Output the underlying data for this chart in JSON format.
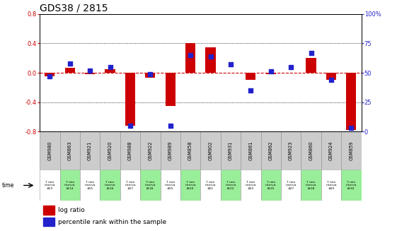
{
  "title": "GDS38 / 2815",
  "gsm_labels": [
    "GSM980",
    "GSM863",
    "GSM921",
    "GSM920",
    "GSM988",
    "GSM922",
    "GSM989",
    "GSM858",
    "GSM902",
    "GSM931",
    "GSM861",
    "GSM862",
    "GSM923",
    "GSM860",
    "GSM924",
    "GSM859"
  ],
  "time_labels_line1": "7 min",
  "time_labels_line2": "interva",
  "time_labels_ids": [
    "#13",
    "l#14",
    "#15",
    "l#16",
    "#17",
    "l#18",
    "#19",
    "l#20",
    "#21",
    "l#22",
    "#23",
    "l#25",
    "#27",
    "l#28",
    "#29",
    "l#30"
  ],
  "log_ratio": [
    -0.05,
    0.07,
    -0.02,
    0.05,
    -0.72,
    -0.07,
    -0.45,
    0.4,
    0.35,
    0.0,
    -0.1,
    -0.02,
    0.0,
    0.2,
    -0.1,
    -0.78
  ],
  "percentile": [
    47,
    58,
    52,
    55,
    5,
    49,
    5,
    65,
    64,
    57,
    35,
    51,
    55,
    67,
    44,
    3
  ],
  "ylim_left": [
    -0.8,
    0.8
  ],
  "ylim_right": [
    0,
    100
  ],
  "yticks_left": [
    -0.8,
    -0.4,
    0.0,
    0.4,
    0.8
  ],
  "yticks_right": [
    0,
    25,
    50,
    75,
    100
  ],
  "bar_color": "#cc0000",
  "dot_color": "#2222cc",
  "zero_line_color": "#cc0000",
  "grid_color": "#000000",
  "bg_color": "#ffffff",
  "plot_bg": "#ffffff",
  "gsm_bg": "#cccccc",
  "time_bg_green": "#99ee99",
  "time_bg_white": "#ffffff",
  "legend_bar_label": "log ratio",
  "legend_dot_label": "percentile rank within the sample",
  "title_fontsize": 10,
  "tick_fontsize": 6,
  "label_fontsize": 6.5,
  "bar_width": 0.5
}
